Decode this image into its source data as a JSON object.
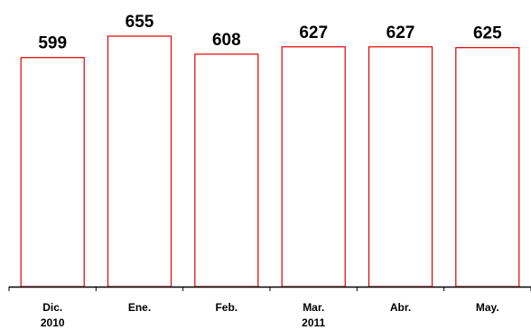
{
  "chart_data": {
    "type": "bar",
    "title": "",
    "xlabel": "",
    "ylabel": "",
    "categories": [
      [
        "Dic.",
        "2010"
      ],
      [
        "Ene."
      ],
      [
        "Feb."
      ],
      [
        "Mar.",
        "2011"
      ],
      [
        "Abr."
      ],
      [
        "May."
      ]
    ],
    "values": [
      599,
      655,
      608,
      627,
      627,
      625
    ],
    "data_labels": [
      "599",
      "655",
      "608",
      "627",
      "627",
      "625"
    ],
    "ylim": [
      0,
      700
    ],
    "grid": false,
    "legend": "none",
    "colors": {
      "bar_stroke": "#e00000",
      "bar_fill": "#ffffff",
      "axis": "#000000",
      "text": "#000000"
    }
  }
}
